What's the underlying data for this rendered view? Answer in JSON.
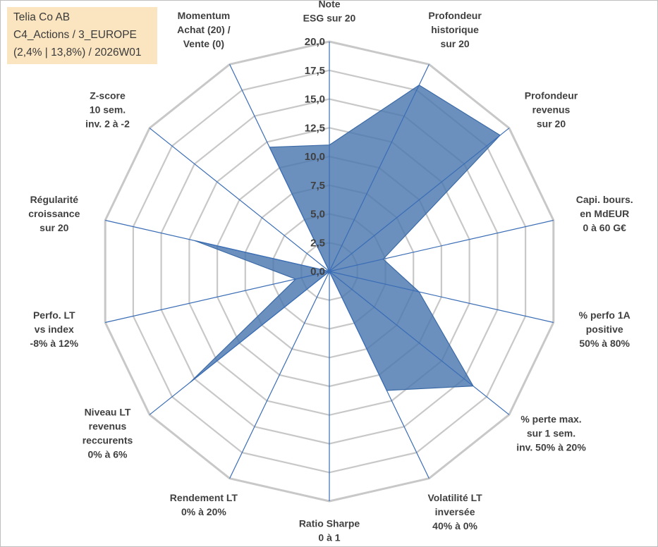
{
  "info_box": {
    "line1": "Telia Co AB",
    "line2": "C4_Actions / 3_EUROPE",
    "line3": "(2,4% | 13,8%) / 2026W01"
  },
  "colors": {
    "fill": "#4a78b0",
    "stroke": "#3b6aa6",
    "spoke": "#3a6db5",
    "grid": "#c8c8c8",
    "text": "#404040",
    "info_bg": "#fbe5c0"
  },
  "chart_data": {
    "type": "radar",
    "rmin": 0,
    "rmax": 20,
    "ticks": [
      "0,0",
      "2,5",
      "5,0",
      "7,5",
      "10,0",
      "12,5",
      "15,0",
      "17,5",
      "20,0"
    ],
    "tick_values": [
      0,
      2.5,
      5,
      7.5,
      10,
      12.5,
      15,
      17.5,
      20
    ],
    "grid": true,
    "axes": [
      {
        "lines": [
          "Note",
          "ESG sur 20"
        ]
      },
      {
        "lines": [
          "Profondeur",
          "historique",
          "sur 20"
        ]
      },
      {
        "lines": [
          "Profondeur",
          "revenus",
          "sur 20"
        ]
      },
      {
        "lines": [
          "Capi. bours.",
          "en MdEUR",
          "0 à 60 G€"
        ]
      },
      {
        "lines": [
          "% perfo 1A",
          "positive",
          "50% à 80%"
        ]
      },
      {
        "lines": [
          "% perte max.",
          "sur 1 sem.",
          "inv. 50% à 20%"
        ]
      },
      {
        "lines": [
          "Volatilité LT",
          "inversée",
          "40% à 0%"
        ]
      },
      {
        "lines": [
          "Ratio Sharpe",
          "0 à 1"
        ]
      },
      {
        "lines": [
          "Rendement LT",
          "0% à 20%"
        ]
      },
      {
        "lines": [
          "Niveau LT",
          "revenus",
          "reccurents",
          "0% à 6%"
        ]
      },
      {
        "lines": [
          "Perfo. LT",
          "vs index",
          "-8% à 12%"
        ]
      },
      {
        "lines": [
          "Régularité",
          "croissance",
          "sur 20"
        ]
      },
      {
        "lines": [
          "Z-score",
          "10 sem.",
          "inv. 2 à -2"
        ]
      },
      {
        "lines": [
          "Momentum",
          "Achat (20) /",
          "Vente (0)"
        ]
      }
    ],
    "values": [
      11,
      18,
      19,
      4.8,
      8,
      16,
      11.5,
      0,
      0,
      15.5,
      3,
      12,
      0,
      12
    ]
  }
}
